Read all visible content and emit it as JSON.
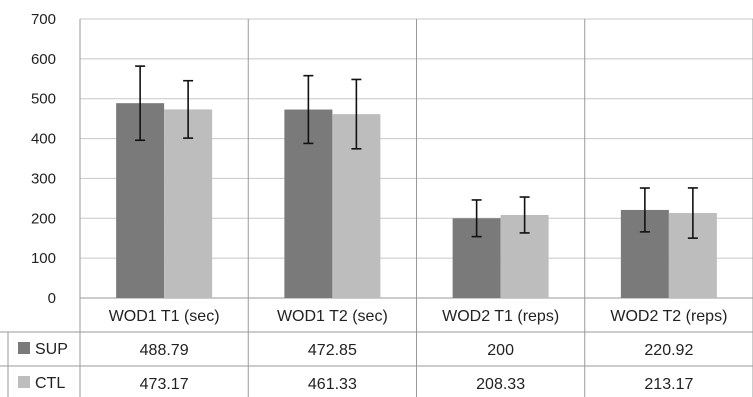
{
  "chart_data": {
    "type": "bar",
    "categories": [
      "WOD1 T1 (sec)",
      "WOD1 T2 (sec)",
      "WOD2 T1 (reps)",
      "WOD2 T2 (reps)"
    ],
    "series": [
      {
        "name": "SUP",
        "values": [
          488.79,
          472.85,
          200,
          220.92
        ],
        "error": [
          93,
          85,
          46,
          55
        ],
        "color": "#7a7a7a"
      },
      {
        "name": "CTL",
        "values": [
          473.17,
          461.33,
          208.33,
          213.17
        ],
        "error": [
          72,
          87,
          45,
          63
        ],
        "color": "#bdbdbd"
      }
    ],
    "table_values": [
      [
        "488.79",
        "472.85",
        "200",
        "220.92"
      ],
      [
        "473.17",
        "461.33",
        "208.33",
        "213.17"
      ]
    ],
    "ylim": [
      0,
      700
    ],
    "yticks": [
      0,
      100,
      200,
      300,
      400,
      500,
      600,
      700
    ],
    "grid": true,
    "legend": "data table"
  }
}
